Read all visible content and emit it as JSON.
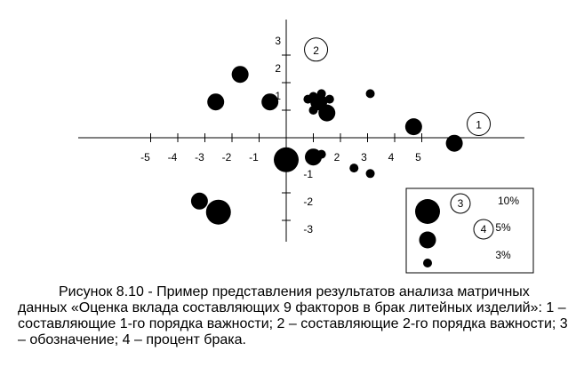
{
  "chart_data": {
    "type": "scatter",
    "title": "",
    "xlabel": "",
    "ylabel": "",
    "xlim": [
      -5.2,
      6.2
    ],
    "ylim": [
      -3.5,
      3.5
    ],
    "grid": false,
    "x_ticks": [
      -5,
      -4,
      -3,
      -2,
      -1,
      1,
      2,
      3,
      4,
      5
    ],
    "x_tick_labels": [
      "-5",
      "-4",
      "-3",
      "-2",
      "-1",
      "1",
      "2",
      "3",
      "4",
      "5"
    ],
    "y_ticks": [
      -3,
      -2,
      -1,
      1,
      2,
      3
    ],
    "y_tick_labels": [
      "-3",
      "-2",
      "-1",
      "1",
      "2",
      "3"
    ],
    "points": [
      {
        "x": -1.7,
        "y": 2.3,
        "defect_pct": 5
      },
      {
        "x": -2.6,
        "y": 1.3,
        "defect_pct": 5
      },
      {
        "x": -0.6,
        "y": 1.3,
        "defect_pct": 5
      },
      {
        "x": 1.3,
        "y": 1.6,
        "defect_pct": 3
      },
      {
        "x": 1.0,
        "y": 1.5,
        "defect_pct": 3
      },
      {
        "x": 0.8,
        "y": 1.4,
        "defect_pct": 3
      },
      {
        "x": 1.2,
        "y": 1.3,
        "defect_pct": 5
      },
      {
        "x": 1.6,
        "y": 1.4,
        "defect_pct": 3
      },
      {
        "x": 1.0,
        "y": 1.0,
        "defect_pct": 3
      },
      {
        "x": 1.5,
        "y": 0.9,
        "defect_pct": 5
      },
      {
        "x": 3.1,
        "y": 1.6,
        "defect_pct": 3
      },
      {
        "x": 4.7,
        "y": 0.4,
        "defect_pct": 5
      },
      {
        "x": 6.2,
        "y": -0.2,
        "defect_pct": 5
      },
      {
        "x": 0.0,
        "y": -0.8,
        "defect_pct": 10
      },
      {
        "x": 1.0,
        "y": -0.7,
        "defect_pct": 5
      },
      {
        "x": 1.3,
        "y": -0.6,
        "defect_pct": 3
      },
      {
        "x": 2.5,
        "y": -1.1,
        "defect_pct": 3
      },
      {
        "x": 3.1,
        "y": -1.3,
        "defect_pct": 3
      },
      {
        "x": -3.2,
        "y": -2.3,
        "defect_pct": 5
      },
      {
        "x": -2.5,
        "y": -2.7,
        "defect_pct": 10
      }
    ],
    "annotations": [
      {
        "label": "1",
        "x": 7.1,
        "y": 0.5
      },
      {
        "label": "2",
        "x": 1.1,
        "y": 3.2
      }
    ],
    "legend": {
      "placement": "bottom-right",
      "marker_label": "3",
      "size_label": "4",
      "entries": [
        {
          "label": "10%",
          "defect_pct": 10
        },
        {
          "label": "5%",
          "defect_pct": 5
        },
        {
          "label": "3%",
          "defect_pct": 3
        }
      ]
    }
  },
  "caption": {
    "text": "Рисунок 8.10 - Пример представления результатов анализа матричных  данных «Оценка вклада составляющих 9 факторов в брак литейных изделий»:  1 – составляющие 1-го порядка важности; 2 – составляющие 2-го порядка важности;  3 – обозначение; 4 – процент брака."
  }
}
